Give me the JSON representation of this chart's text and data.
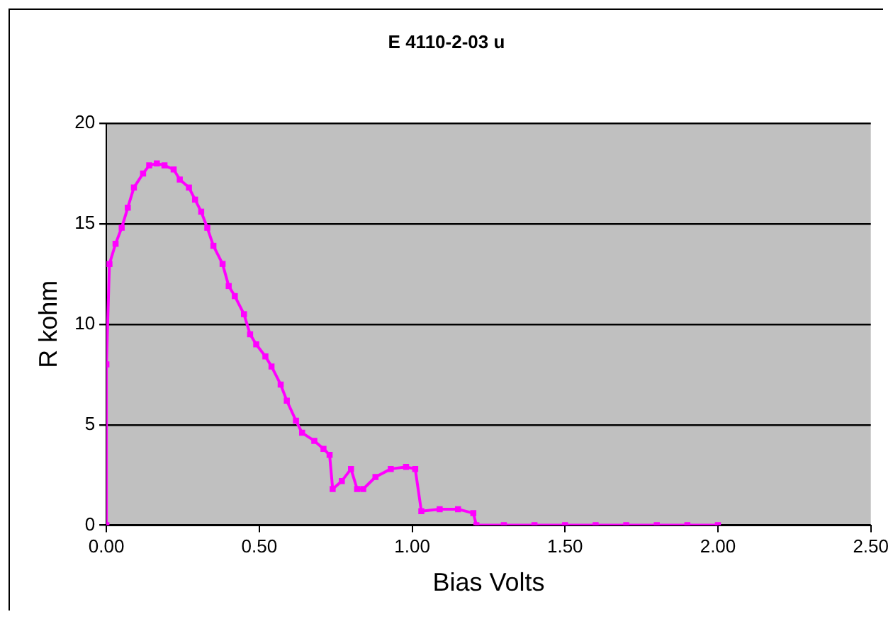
{
  "chart_data": {
    "type": "line",
    "title": "E 4110-2-03 u",
    "xlabel": "Bias Volts",
    "ylabel": "R kohm",
    "xlim": [
      0,
      2.5
    ],
    "xticks": [
      {
        "value": 0,
        "label": "0.00"
      },
      {
        "value": 0.5,
        "label": "0.50"
      },
      {
        "value": 1,
        "label": "1.00"
      },
      {
        "value": 1.5,
        "label": "1.50"
      },
      {
        "value": 2,
        "label": "2.00"
      },
      {
        "value": 2.5,
        "label": "2.50"
      }
    ],
    "ylim": [
      0,
      20
    ],
    "yticks": [
      0,
      5,
      10,
      15,
      20
    ],
    "grid": "y",
    "legend": false,
    "marker": "square",
    "line_style": "solid",
    "series": [
      {
        "color": "#ff00ff",
        "x": [
          0,
          0,
          0.01,
          0.03,
          0.05,
          0.07,
          0.09,
          0.12,
          0.14,
          0.165,
          0.19,
          0.22,
          0.24,
          0.27,
          0.29,
          0.31,
          0.33,
          0.35,
          0.38,
          0.4,
          0.42,
          0.45,
          0.47,
          0.49,
          0.52,
          0.54,
          0.57,
          0.59,
          0.62,
          0.64,
          0.68,
          0.71,
          0.73,
          0.74,
          0.77,
          0.8,
          0.82,
          0.84,
          0.88,
          0.93,
          0.98,
          1.01,
          1.03,
          1.09,
          1.15,
          1.2,
          1.21,
          1.3,
          1.4,
          1.5,
          1.6,
          1.7,
          1.8,
          1.9,
          2.0
        ],
        "values": [
          0,
          8,
          13,
          14,
          14.8,
          15.8,
          16.8,
          17.5,
          17.9,
          18,
          17.9,
          17.7,
          17.2,
          16.8,
          16.2,
          15.6,
          14.8,
          13.9,
          13,
          11.9,
          11.4,
          10.5,
          9.5,
          9,
          8.4,
          7.9,
          7,
          6.2,
          5.2,
          4.6,
          4.2,
          3.8,
          3.5,
          1.8,
          2.2,
          2.8,
          1.8,
          1.8,
          2.4,
          2.8,
          2.9,
          2.8,
          0.7,
          0.8,
          0.8,
          0.6,
          0,
          0,
          0,
          0,
          0,
          0,
          0,
          0,
          0
        ]
      }
    ]
  }
}
